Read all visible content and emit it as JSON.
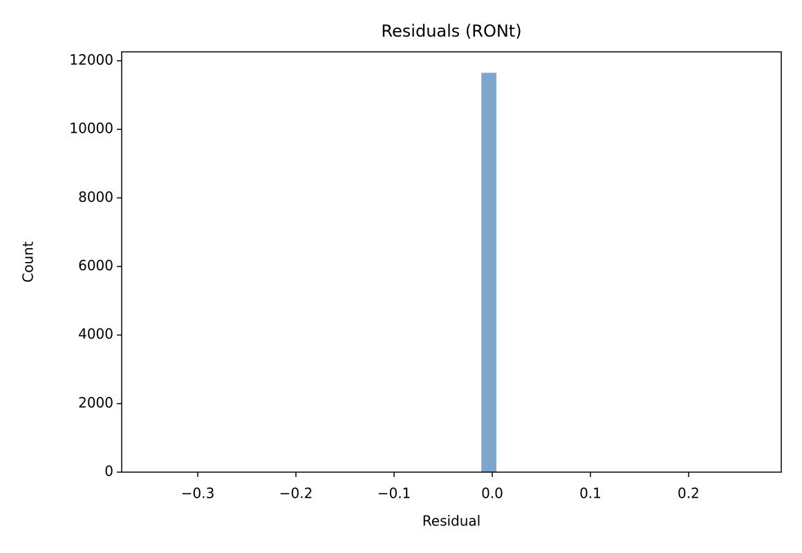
{
  "chart_data": {
    "type": "histogram",
    "title": "Residuals (RONt)",
    "x_label": "Residual",
    "y_label": "Count",
    "bins": [
      -0.347,
      -0.3317,
      -0.3165,
      -0.3012,
      -0.2859,
      -0.2707,
      -0.2554,
      -0.2401,
      -0.2248,
      -0.2096,
      -0.1943,
      -0.179,
      -0.1638,
      -0.1485,
      -0.1332,
      -0.118,
      -0.1027,
      -0.0874,
      -0.0721,
      -0.0569,
      -0.0416,
      -0.0263,
      -0.0111,
      0.0042,
      0.0195,
      0.0348,
      0.05,
      0.0653,
      0.0806,
      0.0958,
      0.1111,
      0.1264,
      0.1417,
      0.1569,
      0.1722,
      0.1875,
      0.2027,
      0.218,
      0.2333,
      0.2486,
      0.2638
    ],
    "values": [
      1,
      0,
      0,
      0,
      0,
      0,
      0,
      0,
      0,
      0,
      0,
      0,
      0,
      0,
      0,
      0,
      0,
      0,
      0,
      0,
      0,
      0,
      11650,
      0,
      0,
      0,
      0,
      0,
      0,
      0,
      0,
      0,
      0,
      0,
      0,
      0,
      0,
      0,
      0,
      1
    ],
    "color": "#7ea6cb",
    "xlim": [
      -0.3775,
      0.2944
    ],
    "xticks": [
      {
        "value": -0.3,
        "label": "−0.3"
      },
      {
        "value": -0.2,
        "label": "−0.2"
      },
      {
        "value": -0.1,
        "label": "−0.1"
      },
      {
        "value": 0,
        "label": "0.0"
      },
      0.1,
      0.2
    ],
    "ylim": [
      0,
      12262
    ],
    "yticks": [
      0,
      2000,
      4000,
      6000,
      8000,
      10000,
      12000
    ],
    "grid": false
  }
}
